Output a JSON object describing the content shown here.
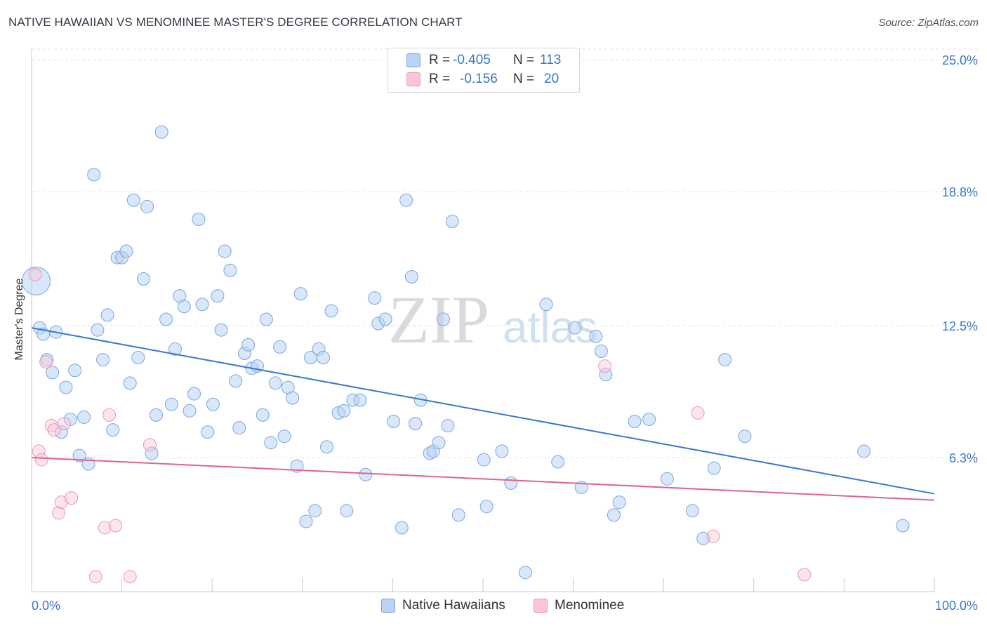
{
  "title": "NATIVE HAWAIIAN VS MENOMINEE MASTER'S DEGREE CORRELATION CHART",
  "source": "Source: ZipAtlas.com",
  "legend_top": [
    {
      "r_label": "R =",
      "r_value": "-0.405",
      "n_label": "N =",
      "n_value": "113"
    },
    {
      "r_label": "R =",
      "r_value": "-0.156",
      "n_label": "N =",
      "n_value": "20"
    }
  ],
  "legend_bottom": [
    "Native Hawaiians",
    "Menominee"
  ],
  "colors": {
    "blue": "#3a78c9",
    "blue_fill": "#b8d3f5",
    "pink": "#e0638e",
    "pink_fill": "#f8c6d6",
    "axis_label": "#3a78c9"
  },
  "chart_data": {
    "type": "scatter",
    "title": "NATIVE HAWAIIAN VS MENOMINEE MASTER'S DEGREE CORRELATION CHART",
    "xlabel": "",
    "ylabel": "Master's Degree",
    "xlim": [
      0,
      100
    ],
    "ylim": [
      0,
      25.5
    ],
    "x_tick_labels": [
      "0.0%",
      "100.0%"
    ],
    "y_ticks": [
      6.3,
      12.5,
      18.8,
      25.0
    ],
    "y_tick_labels": [
      "6.3%",
      "12.5%",
      "18.8%",
      "25.0%"
    ],
    "grid": true,
    "watermark": "ZIPatlas",
    "series": [
      {
        "name": "Native Hawaiians",
        "r": -0.405,
        "n": 113,
        "trend": {
          "x0": 0,
          "y0": 12.4,
          "x1": 100,
          "y1": 4.6
        },
        "points": [
          [
            0.5,
            14.6
          ],
          [
            0.9,
            12.4
          ],
          [
            1.3,
            12.1
          ],
          [
            1.7,
            10.9
          ],
          [
            2.3,
            10.3
          ],
          [
            2.7,
            12.2
          ],
          [
            3.3,
            7.5
          ],
          [
            3.8,
            9.6
          ],
          [
            4.3,
            8.1
          ],
          [
            4.8,
            10.4
          ],
          [
            5.3,
            6.4
          ],
          [
            5.8,
            8.2
          ],
          [
            6.3,
            6.0
          ],
          [
            6.9,
            19.6
          ],
          [
            7.3,
            12.3
          ],
          [
            7.9,
            10.9
          ],
          [
            8.4,
            13.0
          ],
          [
            9.0,
            7.6
          ],
          [
            9.5,
            15.7
          ],
          [
            10.0,
            15.7
          ],
          [
            10.5,
            16.0
          ],
          [
            10.9,
            9.8
          ],
          [
            11.3,
            18.4
          ],
          [
            11.8,
            11.0
          ],
          [
            12.4,
            14.7
          ],
          [
            12.8,
            18.1
          ],
          [
            13.3,
            6.5
          ],
          [
            13.8,
            8.3
          ],
          [
            14.4,
            21.6
          ],
          [
            14.9,
            12.8
          ],
          [
            15.5,
            8.8
          ],
          [
            15.9,
            11.4
          ],
          [
            16.4,
            13.9
          ],
          [
            16.9,
            13.4
          ],
          [
            17.5,
            8.5
          ],
          [
            18.0,
            9.3
          ],
          [
            18.5,
            17.5
          ],
          [
            18.9,
            13.5
          ],
          [
            19.5,
            7.5
          ],
          [
            20.1,
            8.8
          ],
          [
            20.6,
            13.9
          ],
          [
            21.0,
            12.3
          ],
          [
            21.4,
            16.0
          ],
          [
            22.0,
            15.1
          ],
          [
            22.6,
            9.9
          ],
          [
            23.0,
            7.7
          ],
          [
            23.6,
            11.2
          ],
          [
            24.0,
            11.6
          ],
          [
            24.4,
            10.5
          ],
          [
            25.0,
            10.6
          ],
          [
            25.6,
            8.3
          ],
          [
            26.0,
            12.8
          ],
          [
            26.5,
            7.0
          ],
          [
            27.0,
            9.8
          ],
          [
            27.5,
            11.5
          ],
          [
            28.0,
            7.3
          ],
          [
            28.4,
            9.6
          ],
          [
            28.9,
            9.1
          ],
          [
            29.4,
            5.9
          ],
          [
            29.8,
            14.0
          ],
          [
            30.4,
            3.3
          ],
          [
            30.9,
            11.0
          ],
          [
            31.4,
            3.8
          ],
          [
            31.8,
            11.4
          ],
          [
            32.3,
            11.0
          ],
          [
            32.7,
            6.8
          ],
          [
            33.2,
            13.2
          ],
          [
            34.0,
            8.4
          ],
          [
            34.6,
            8.5
          ],
          [
            34.9,
            3.8
          ],
          [
            35.6,
            9.0
          ],
          [
            36.4,
            9.0
          ],
          [
            37.0,
            5.5
          ],
          [
            38.0,
            13.8
          ],
          [
            38.4,
            12.6
          ],
          [
            39.2,
            12.8
          ],
          [
            40.1,
            8.0
          ],
          [
            41.0,
            3.0
          ],
          [
            41.5,
            18.4
          ],
          [
            42.1,
            14.8
          ],
          [
            42.5,
            7.9
          ],
          [
            43.1,
            9.0
          ],
          [
            44.1,
            6.5
          ],
          [
            44.5,
            6.6
          ],
          [
            45.1,
            7.0
          ],
          [
            45.6,
            12.8
          ],
          [
            46.1,
            7.8
          ],
          [
            46.6,
            17.4
          ],
          [
            47.3,
            3.6
          ],
          [
            50.1,
            6.2
          ],
          [
            50.4,
            4.0
          ],
          [
            52.1,
            6.6
          ],
          [
            53.1,
            5.1
          ],
          [
            54.7,
            0.9
          ],
          [
            57.0,
            13.5
          ],
          [
            58.3,
            6.1
          ],
          [
            60.2,
            12.4
          ],
          [
            60.9,
            4.9
          ],
          [
            62.5,
            12.0
          ],
          [
            63.1,
            11.3
          ],
          [
            63.6,
            10.2
          ],
          [
            64.5,
            3.6
          ],
          [
            65.1,
            4.2
          ],
          [
            66.8,
            8.0
          ],
          [
            68.4,
            8.1
          ],
          [
            70.4,
            5.3
          ],
          [
            73.2,
            3.8
          ],
          [
            74.4,
            2.5
          ],
          [
            75.6,
            5.8
          ],
          [
            76.8,
            10.9
          ],
          [
            79.0,
            7.3
          ],
          [
            92.2,
            6.6
          ],
          [
            96.5,
            3.1
          ]
        ]
      },
      {
        "name": "Menominee",
        "r": -0.156,
        "n": 20,
        "trend": {
          "x0": 0,
          "y0": 6.3,
          "x1": 100,
          "y1": 4.3
        },
        "points": [
          [
            0.4,
            14.9
          ],
          [
            0.8,
            6.6
          ],
          [
            1.1,
            6.2
          ],
          [
            1.6,
            10.8
          ],
          [
            2.2,
            7.8
          ],
          [
            2.5,
            7.6
          ],
          [
            3.0,
            3.7
          ],
          [
            3.3,
            4.2
          ],
          [
            3.6,
            7.9
          ],
          [
            4.4,
            4.4
          ],
          [
            7.1,
            0.7
          ],
          [
            8.1,
            3.0
          ],
          [
            8.6,
            8.3
          ],
          [
            9.3,
            3.1
          ],
          [
            10.9,
            0.7
          ],
          [
            13.1,
            6.9
          ],
          [
            63.5,
            10.6
          ],
          [
            73.8,
            8.4
          ],
          [
            75.5,
            2.6
          ],
          [
            85.6,
            0.8
          ]
        ]
      }
    ]
  }
}
